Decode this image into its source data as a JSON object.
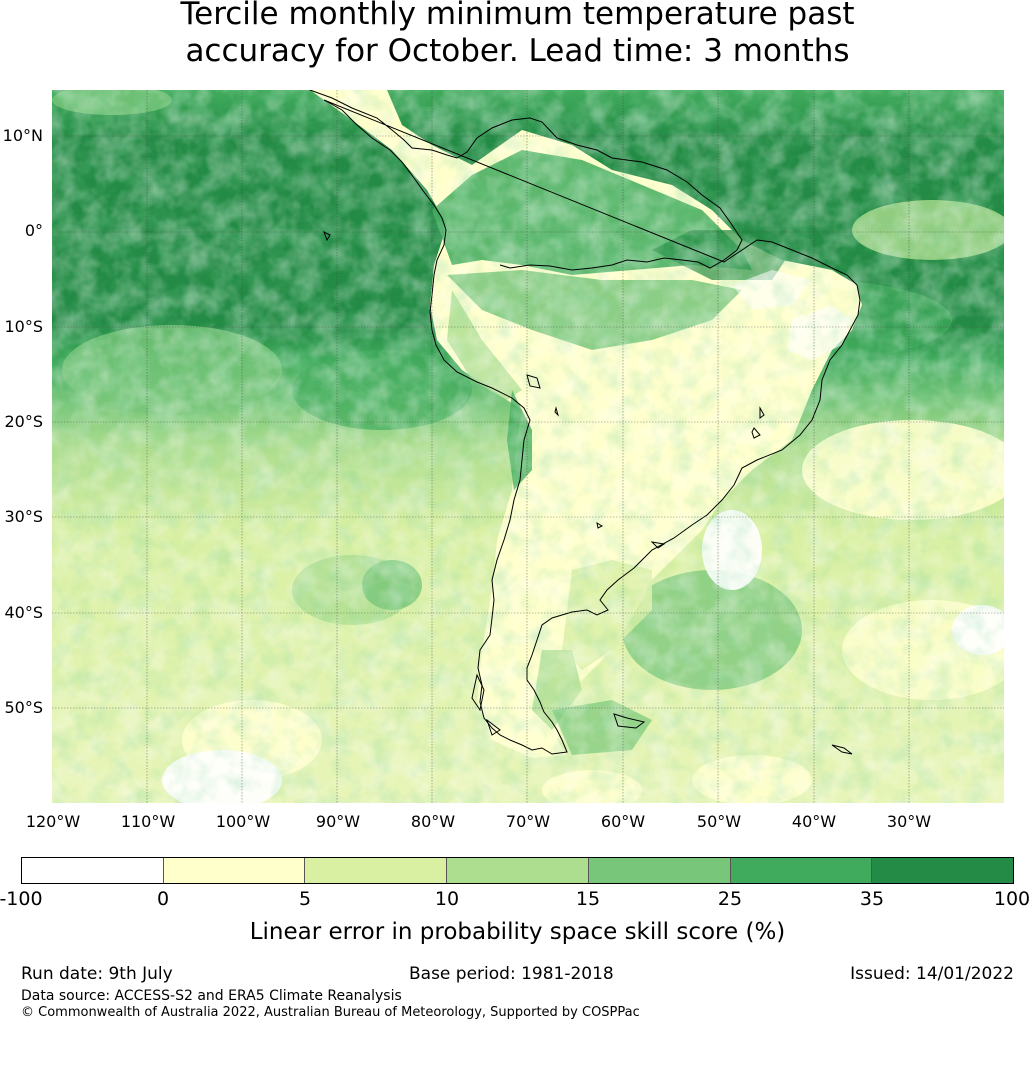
{
  "title": {
    "line1": "Tercile monthly minimum temperature past",
    "line2": "accuracy for October. Lead time: 3 months"
  },
  "map": {
    "region": "South America",
    "lat_labels": [
      "10°N",
      "0°",
      "10°S",
      "20°S",
      "30°S",
      "40°S",
      "50°S"
    ],
    "lon_labels": [
      "120°W",
      "110°W",
      "100°W",
      "90°W",
      "80°W",
      "70°W",
      "60°W",
      "50°W",
      "40°W",
      "30°W"
    ],
    "gridlines": true,
    "colors": {
      "ocean_high": "#238b45",
      "ocean_mid": "#41ab5d",
      "coastline": "#000000"
    }
  },
  "colorbar": {
    "ticks": [
      "-100",
      "0",
      "5",
      "10",
      "15",
      "25",
      "35",
      "100"
    ],
    "colors": [
      "#ffffff",
      "#ffffcc",
      "#d9f0a3",
      "#addd8e",
      "#78c679",
      "#41ab5d",
      "#238b45"
    ],
    "label": "Linear error in probability space skill score (%)"
  },
  "footer": {
    "run_date": "Run date: 9th July",
    "base_period": "Base period: 1981-2018",
    "issued": "Issued: 14/01/2022",
    "data_source": "Data source: ACCESS-S2 and ERA5 Climate Reanalysis",
    "copyright": "© Commonwealth of Australia 2022, Australian Bureau of Meteorology, Supported by COSPPac"
  }
}
